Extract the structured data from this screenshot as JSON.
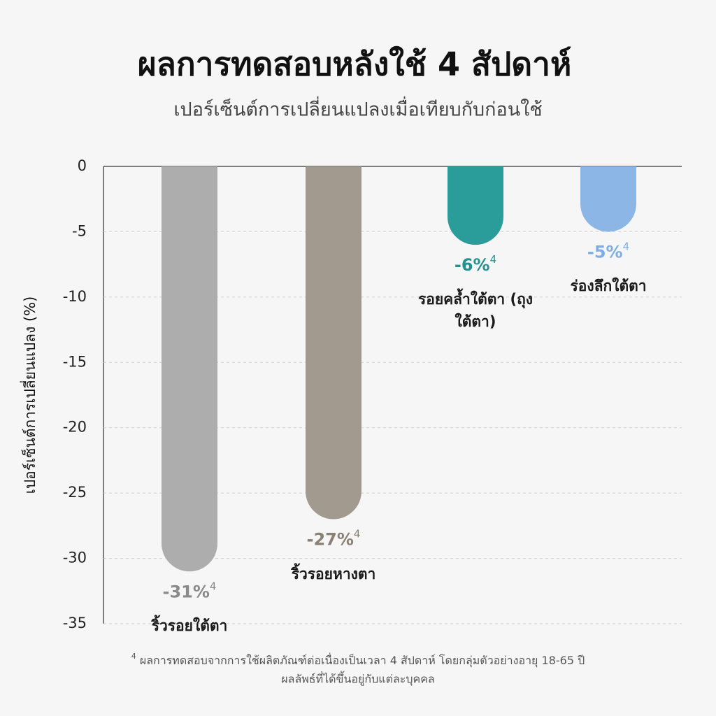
{
  "chart_data": {
    "type": "bar",
    "title": "ผลการทดสอบหลังใช้ 4 สัปดาห์",
    "subtitle": "เปอร์เซ็นต์การเปลี่ยนแปลงเมื่อเทียบกับก่อนใช้",
    "y_label": "เปอร์เซ็นต์การเปลี่ยนแปลง (%)",
    "categories": [
      "ริ้วรอยใต้ตา",
      "ริ้วรอยหางตา",
      "รอยคล้ำใต้ตา (ถุงใต้ตา)",
      "ร่องลึกใต้ตา"
    ],
    "values": [
      -31,
      -27,
      -6,
      -5
    ],
    "value_labels": [
      "-31%",
      "-27%",
      "-6%",
      "-5%"
    ],
    "footnote_marker": "4",
    "colors": [
      "#adadad",
      "#a39a8f",
      "#2a9d9b",
      "#8cb6e6"
    ],
    "label_colors": [
      "#8a8a8a",
      "#8a8076",
      "#22918f",
      "#7eaee3"
    ],
    "ylim": [
      -35,
      0
    ],
    "yticks": [
      0,
      -5,
      -10,
      -15,
      -20,
      -25,
      -30,
      -35
    ],
    "grid": true,
    "footnote": [
      "ผลการทดสอบจากการใช้ผลิตภัณฑ์ต่อเนื่องเป็นเวลา 4 สัปดาห์ โดยกลุ่มตัวอย่างอายุ 18-65 ปี",
      "ผลลัพธ์ที่ได้ขึ้นอยู่กับแต่ละบุคคล"
    ]
  }
}
